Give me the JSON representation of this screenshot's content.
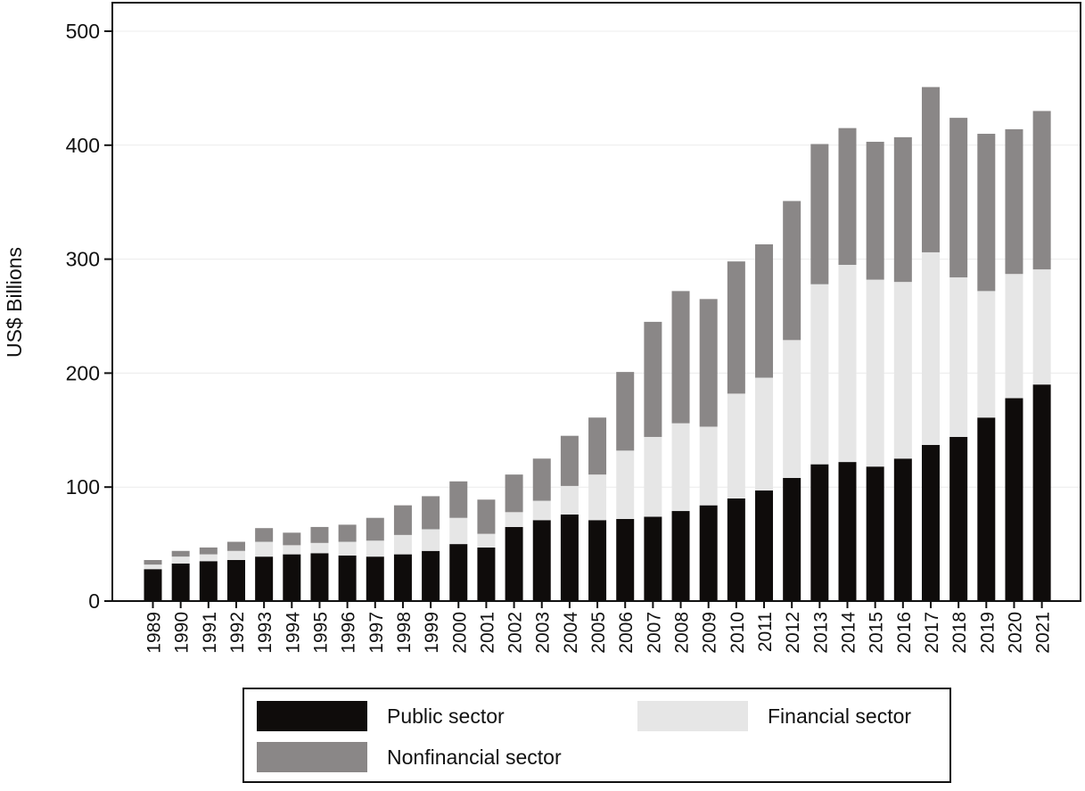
{
  "chart_data": {
    "type": "stacked-bar",
    "title": "",
    "xlabel": "",
    "ylabel": "US$ Billions",
    "ylim": [
      0,
      500
    ],
    "yticks": [
      0,
      100,
      200,
      300,
      400,
      500
    ],
    "categories": [
      "1989",
      "1990",
      "1991",
      "1992",
      "1993",
      "1994",
      "1995",
      "1996",
      "1997",
      "1998",
      "1999",
      "2000",
      "2001",
      "2002",
      "2003",
      "2004",
      "2005",
      "2006",
      "2007",
      "2008",
      "2009",
      "2010",
      "2011",
      "2012",
      "2013",
      "2014",
      "2015",
      "2016",
      "2017",
      "2018",
      "2019",
      "2020",
      "2021"
    ],
    "series": [
      {
        "name": "Public sector",
        "color": "#0f0c0b",
        "values": [
          28,
          33,
          35,
          36,
          39,
          41,
          42,
          40,
          39,
          41,
          44,
          50,
          47,
          65,
          71,
          76,
          71,
          72,
          74,
          79,
          84,
          90,
          97,
          108,
          120,
          122,
          118,
          125,
          137,
          144,
          161,
          178,
          190
        ]
      },
      {
        "name": "Financial sector",
        "color": "#e6e6e6",
        "values": [
          4,
          6,
          6,
          8,
          13,
          8,
          9,
          12,
          14,
          17,
          19,
          23,
          12,
          13,
          17,
          25,
          40,
          60,
          70,
          77,
          69,
          92,
          99,
          121,
          158,
          173,
          164,
          155,
          169,
          140,
          111,
          109,
          101
        ]
      },
      {
        "name": "Nonfinancial sector",
        "color": "#8a8787",
        "values": [
          4,
          5,
          6,
          8,
          12,
          11,
          14,
          15,
          20,
          26,
          29,
          32,
          30,
          33,
          37,
          44,
          50,
          69,
          101,
          116,
          112,
          116,
          117,
          122,
          123,
          120,
          121,
          127,
          145,
          140,
          138,
          127,
          139
        ]
      }
    ],
    "legend_position": "bottom",
    "grid": true
  }
}
